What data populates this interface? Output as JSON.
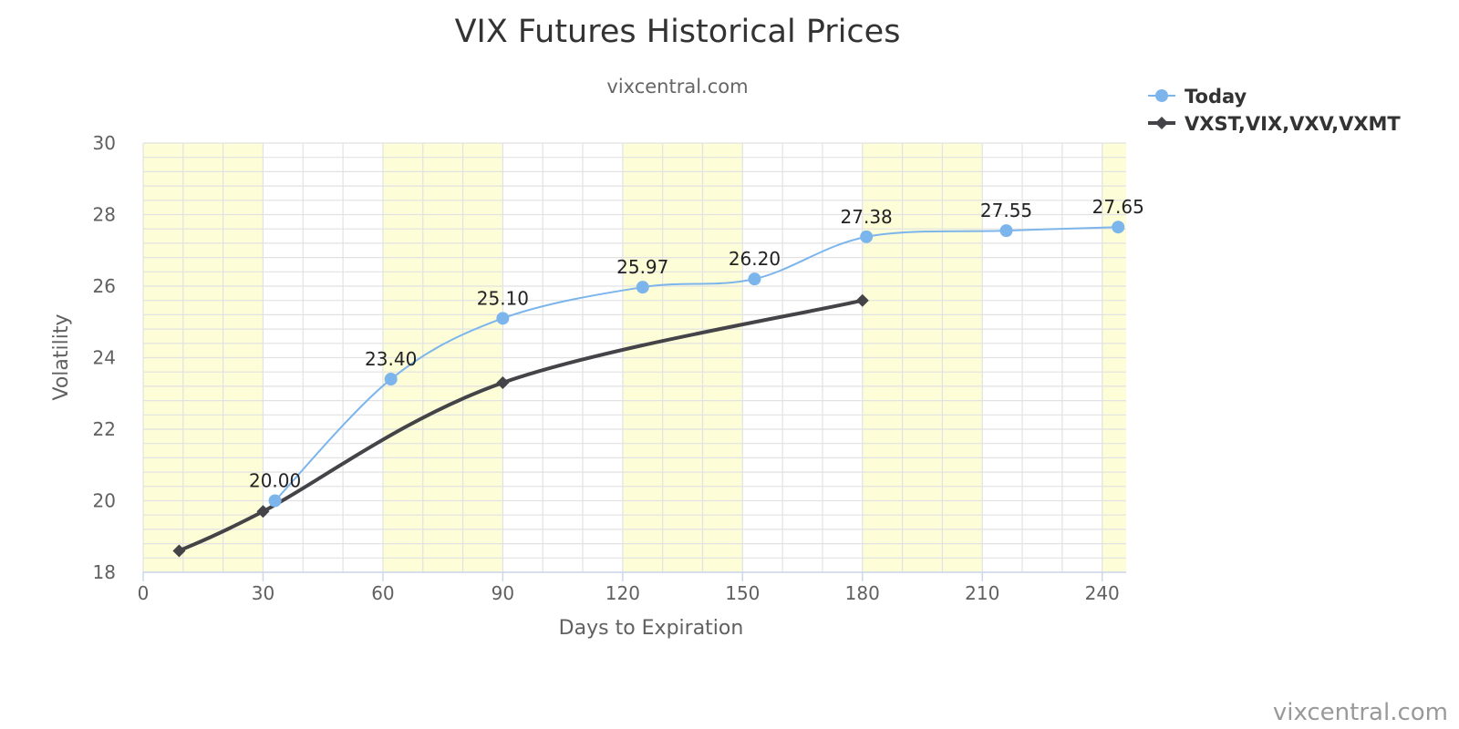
{
  "chart_data": {
    "type": "line",
    "title": "VIX Futures Historical Prices",
    "subtitle": "vixcentral.com",
    "xlabel": "Days to Expiration",
    "ylabel": "Volatility",
    "xlim": [
      0,
      246
    ],
    "ylim": [
      18,
      30
    ],
    "x_ticks": [
      0,
      30,
      60,
      90,
      120,
      150,
      180,
      210,
      240
    ],
    "y_ticks": [
      18,
      20,
      22,
      24,
      26,
      28,
      30
    ],
    "grid": true,
    "shaded_bands": [
      [
        0,
        30
      ],
      [
        60,
        90
      ],
      [
        120,
        150
      ],
      [
        180,
        210
      ],
      [
        240,
        246
      ]
    ],
    "shade_color": "#fdfdd8",
    "legend": "top-right",
    "series": [
      {
        "name": "Today",
        "color": "#7cb5ec",
        "marker": "circle",
        "data_labels": true,
        "x": [
          33,
          62,
          90,
          125,
          153,
          181,
          216,
          244
        ],
        "y": [
          20.0,
          23.4,
          25.1,
          25.97,
          26.2,
          27.38,
          27.55,
          27.65
        ],
        "labels": [
          "20.00",
          "23.40",
          "25.10",
          "25.97",
          "26.20",
          "27.38",
          "27.55",
          "27.65"
        ]
      },
      {
        "name": "VXST,VIX,VXV,VXMT",
        "color": "#434348",
        "marker": "diamond",
        "data_labels": false,
        "x": [
          9,
          30,
          90,
          180
        ],
        "y": [
          18.6,
          19.7,
          23.3,
          25.6
        ]
      }
    ],
    "credits": "vixcentral.com"
  }
}
